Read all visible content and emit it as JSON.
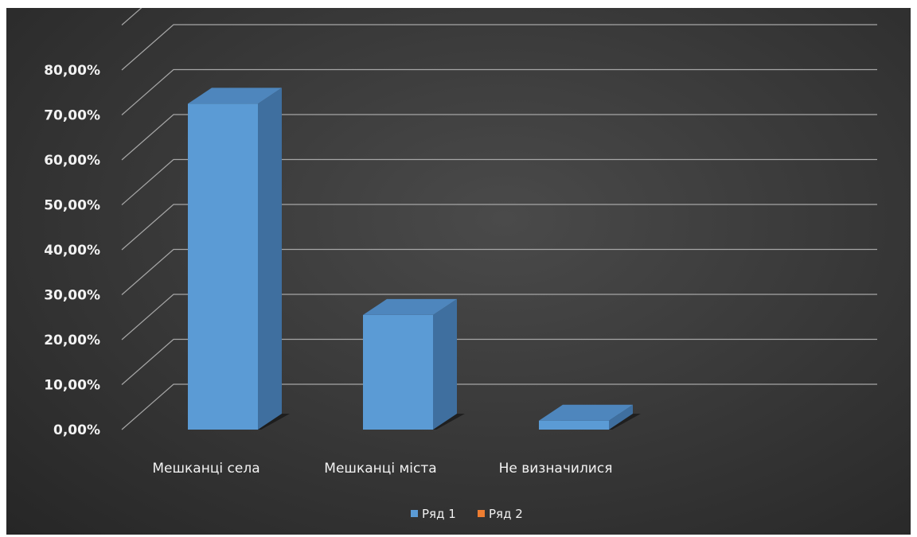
{
  "chart_data": {
    "type": "bar",
    "style": "3d-column",
    "title": "",
    "xlabel": "",
    "ylabel": "",
    "categories": [
      "Мешканці села",
      "Мешканці міста",
      "Не визначилися"
    ],
    "series": [
      {
        "name": "Ряд 1",
        "values": [
          72.5,
          25.5,
          2.0
        ],
        "color": "#5b9bd5"
      },
      {
        "name": "Ряд 2",
        "values": [
          null,
          null,
          null
        ],
        "color": "#ed7d31"
      }
    ],
    "ylim": [
      0,
      90
    ],
    "yticks": [
      0,
      10,
      20,
      30,
      40,
      50,
      60,
      70,
      80
    ],
    "ytick_labels": [
      "0,00%",
      "10,00%",
      "20,00%",
      "30,00%",
      "40,00%",
      "50,00%",
      "60,00%",
      "70,00%",
      "80,00%"
    ],
    "grid": true,
    "legend_position": "bottom",
    "background": "#3a3a3a",
    "gridline_color": "#a6a6a6",
    "text_color": "#f2f2f2"
  }
}
